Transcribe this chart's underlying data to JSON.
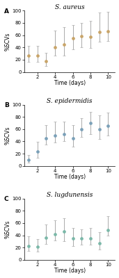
{
  "panels": [
    {
      "label": "A",
      "title": "S. aureus",
      "title_style": "italic",
      "x": [
        1,
        2,
        3,
        4,
        5,
        6,
        7,
        8,
        9,
        10
      ],
      "y": [
        27,
        27,
        18,
        40,
        45,
        55,
        58,
        57,
        65,
        66
      ],
      "yerr_low": [
        10,
        10,
        8,
        13,
        18,
        18,
        18,
        18,
        16,
        16
      ],
      "yerr_high": [
        15,
        15,
        13,
        28,
        28,
        22,
        22,
        26,
        32,
        32
      ]
    },
    {
      "label": "B",
      "title": "S. epidermidis",
      "title_style": "italic",
      "x": [
        1,
        2,
        3,
        4,
        5,
        6,
        7,
        8,
        9,
        10
      ],
      "y": [
        10,
        23,
        45,
        50,
        52,
        45,
        60,
        70,
        60,
        65
      ],
      "yerr_low": [
        5,
        10,
        10,
        12,
        12,
        14,
        13,
        18,
        16,
        16
      ],
      "yerr_high": [
        8,
        16,
        22,
        22,
        20,
        22,
        18,
        18,
        22,
        22
      ]
    },
    {
      "label": "C",
      "title": "S. lugdunensis",
      "title_style": "italic",
      "x": [
        1,
        2,
        3,
        4,
        5,
        6,
        7,
        8,
        9,
        10
      ],
      "y": [
        23,
        21,
        36,
        42,
        46,
        35,
        35,
        35,
        27,
        49
      ],
      "yerr_low": [
        8,
        8,
        10,
        10,
        15,
        13,
        10,
        10,
        10,
        10
      ],
      "yerr_high": [
        15,
        13,
        22,
        22,
        22,
        17,
        15,
        17,
        18,
        22
      ]
    }
  ],
  "colors": [
    "#c8a468",
    "#7aa0b8",
    "#7ab8a8"
  ],
  "ecolor": "#aaaaaa",
  "marker": "o",
  "markersize": 2.8,
  "linewidth": 1.0,
  "capsize": 1.5,
  "elinewidth": 0.7,
  "markeredgewidth": 0.5,
  "ylabel": "%SCVs",
  "xlabel": "Time (days)",
  "ylim": [
    0,
    100
  ],
  "yticks": [
    0,
    20,
    40,
    60,
    80,
    100
  ],
  "xticks": [
    2,
    4,
    6,
    8,
    10
  ],
  "xlim": [
    0.5,
    10.8
  ],
  "background_color": "#ffffff",
  "label_fontsize": 5.5,
  "title_fontsize": 6.5,
  "tick_fontsize": 5.0,
  "panel_label_fontsize": 6.5
}
